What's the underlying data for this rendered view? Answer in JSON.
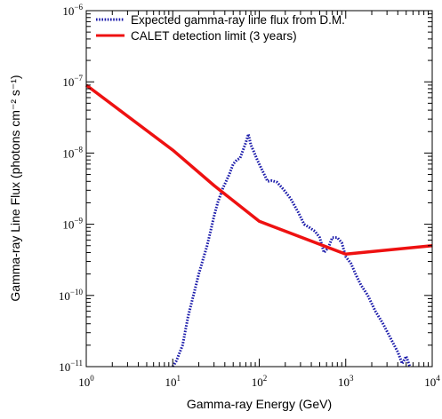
{
  "chart_data": {
    "type": "line",
    "title": "",
    "xlabel": "Gamma-ray Energy (GeV)",
    "ylabel": "Gamma-ray Line Flux (photons cm⁻² s⁻¹)",
    "xscale": "log",
    "yscale": "log",
    "xlim": [
      1,
      10000
    ],
    "ylim": [
      1e-11,
      1e-06
    ],
    "x_ticks": [
      {
        "base": "10",
        "exp": "0"
      },
      {
        "base": "10",
        "exp": "1"
      },
      {
        "base": "10",
        "exp": "2"
      },
      {
        "base": "10",
        "exp": "3"
      },
      {
        "base": "10",
        "exp": "4"
      }
    ],
    "y_ticks": [
      {
        "base": "10",
        "exp": "−11"
      },
      {
        "base": "10",
        "exp": "−10"
      },
      {
        "base": "10",
        "exp": "−9"
      },
      {
        "base": "10",
        "exp": "−8"
      },
      {
        "base": "10",
        "exp": "−7"
      },
      {
        "base": "10",
        "exp": "−6"
      }
    ],
    "grid": false,
    "legend_position": "top-right",
    "series": [
      {
        "name": "Expected gamma-ray line flux from D.M.",
        "color": "#1a1aaa",
        "style": "dotted",
        "x": [
          10,
          11,
          13,
          15,
          18,
          20,
          22,
          25,
          28,
          30,
          33,
          38,
          45,
          50,
          55,
          60,
          65,
          70,
          75,
          80,
          88,
          95,
          110,
          125,
          140,
          160,
          190,
          230,
          280,
          330,
          380,
          440,
          500,
          560,
          630,
          700,
          800,
          900,
          1000,
          1150,
          1300,
          1500,
          1800,
          2200,
          2700,
          3300,
          4000,
          4500,
          5000,
          5500
        ],
        "y": [
          1e-11,
          1.2e-11,
          2e-11,
          5e-11,
          1.2e-10,
          2e-10,
          3e-10,
          5e-10,
          9e-10,
          1.3e-09,
          2e-09,
          3.2e-09,
          5e-09,
          7e-09,
          8e-09,
          8.5e-09,
          1.1e-08,
          1.4e-08,
          1.85e-08,
          1.3e-08,
          1e-08,
          8e-09,
          5.5e-09,
          4e-09,
          4.1e-09,
          3.9e-09,
          3.1e-09,
          2.3e-09,
          1.5e-09,
          1e-09,
          9e-10,
          8e-10,
          6.5e-10,
          4e-10,
          4.7e-10,
          6.5e-10,
          6.5e-10,
          5.5e-10,
          3.5e-10,
          2.8e-10,
          2e-10,
          1.4e-10,
          1e-10,
          6e-11,
          4e-11,
          2.5e-11,
          1.6e-11,
          1.1e-11,
          1.4e-11,
          1e-11
        ]
      },
      {
        "name": "CALET detection limit (3 years)",
        "color": "#ee1111",
        "style": "solid",
        "x": [
          1,
          10,
          30,
          100,
          1000,
          10000
        ],
        "y": [
          9e-08,
          1.1e-08,
          3.5e-09,
          1.1e-09,
          3.8e-10,
          5e-10
        ]
      }
    ]
  }
}
